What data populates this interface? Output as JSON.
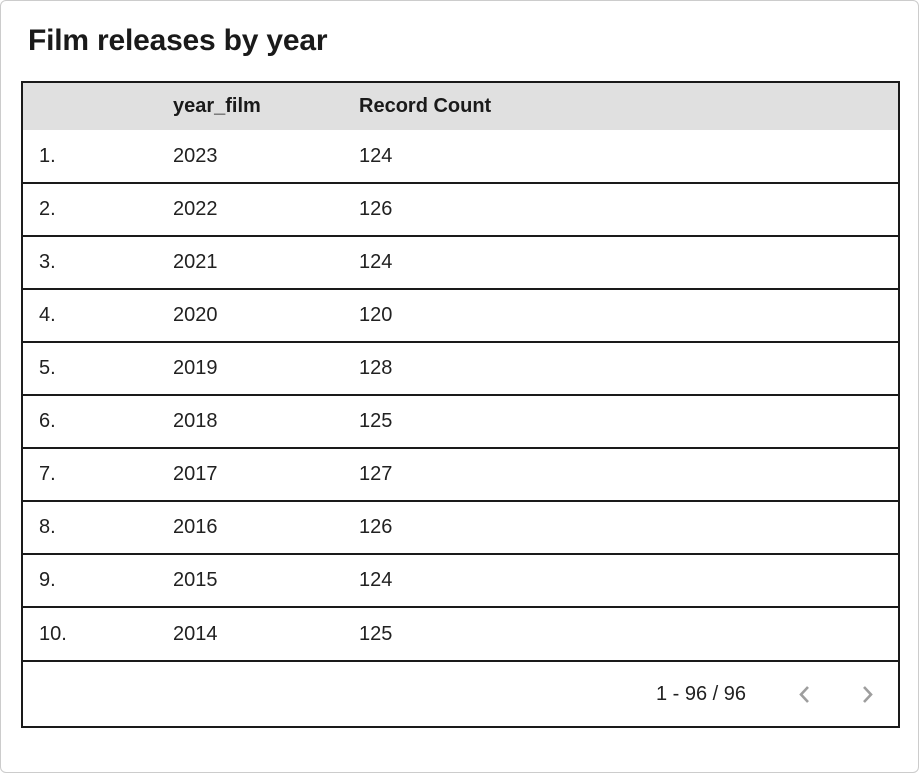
{
  "title": "Film releases by year",
  "table": {
    "columns": [
      "",
      "year_film",
      "Record Count"
    ],
    "row_fields": [
      "index",
      "year_film",
      "record_count"
    ],
    "cell_names": [
      "row-number-cell",
      "year-film-cell",
      "record-count-cell"
    ],
    "rows": [
      {
        "index": "1.",
        "year_film": "2023",
        "record_count": "124"
      },
      {
        "index": "2.",
        "year_film": "2022",
        "record_count": "126"
      },
      {
        "index": "3.",
        "year_film": "2021",
        "record_count": "124"
      },
      {
        "index": "4.",
        "year_film": "2020",
        "record_count": "120"
      },
      {
        "index": "5.",
        "year_film": "2019",
        "record_count": "128"
      },
      {
        "index": "6.",
        "year_film": "2018",
        "record_count": "125"
      },
      {
        "index": "7.",
        "year_film": "2017",
        "record_count": "127"
      },
      {
        "index": "8.",
        "year_film": "2016",
        "record_count": "126"
      },
      {
        "index": "9.",
        "year_film": "2015",
        "record_count": "124"
      },
      {
        "index": "10.",
        "year_film": "2014",
        "record_count": "125"
      }
    ]
  },
  "pagination": {
    "range_label": "1 - 96 / 96",
    "prev_icon": "chevron-left",
    "next_icon": "chevron-right"
  },
  "colors": {
    "header_background": "#e0e0e0",
    "row_border": "#1a1a1a",
    "card_border": "#cccccc",
    "chevron": "#9e9e9e",
    "text": "#212121"
  },
  "chart_data": {
    "type": "table",
    "title": "Film releases by year",
    "columns": [
      "year_film",
      "Record Count"
    ],
    "rows": [
      [
        2023,
        124
      ],
      [
        2022,
        126
      ],
      [
        2021,
        124
      ],
      [
        2020,
        120
      ],
      [
        2019,
        128
      ],
      [
        2018,
        125
      ],
      [
        2017,
        127
      ],
      [
        2016,
        126
      ],
      [
        2015,
        124
      ],
      [
        2014,
        125
      ]
    ],
    "pagination_range": "1 - 96 / 96",
    "total_rows": 96
  }
}
